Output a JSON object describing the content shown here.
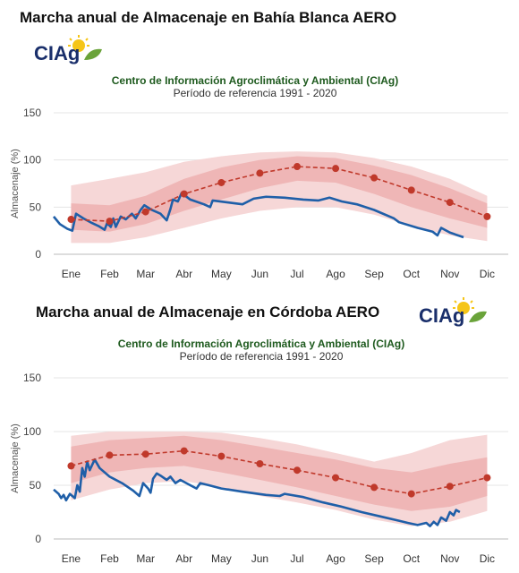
{
  "logo_text": "CIAg",
  "chart_data": [
    {
      "type": "line",
      "title": "Marcha anual de Almacenaje en Bahía Blanca AERO",
      "organization": "Centro de Información Agroclimática y Ambiental (CIAg)",
      "period": "Período de referencia 1991 - 2020",
      "ylabel": "Almacenaje (%)",
      "xlabel": "",
      "ylim": [
        0,
        150
      ],
      "yticks": [
        0,
        50,
        100,
        150
      ],
      "grid": true,
      "months": [
        "Ene",
        "Feb",
        "Mar",
        "Abr",
        "May",
        "Jun",
        "Jul",
        "Ago",
        "Sep",
        "Oct",
        "Nov",
        "Dic"
      ],
      "colors": {
        "current": "#1f5fa8",
        "median": "#c0392b",
        "band_outer": "#f6d7d7",
        "band_inner": "#efb6b6"
      },
      "median": [
        {
          "x": "2024-01-15",
          "y": 37
        },
        {
          "x": "2024-02-15",
          "y": 35
        },
        {
          "x": "2024-03-15",
          "y": 45
        },
        {
          "x": "2024-04-15",
          "y": 64
        },
        {
          "x": "2024-05-15",
          "y": 76
        },
        {
          "x": "2024-06-15",
          "y": 86
        },
        {
          "x": "2024-07-15",
          "y": 93
        },
        {
          "x": "2024-08-15",
          "y": 91
        },
        {
          "x": "2024-09-15",
          "y": 81
        },
        {
          "x": "2024-10-15",
          "y": 68
        },
        {
          "x": "2024-11-15",
          "y": 55
        },
        {
          "x": "2024-12-15",
          "y": 40
        }
      ],
      "band_outer": [
        {
          "x": "2024-01-15",
          "low": 12,
          "high": 73
        },
        {
          "x": "2024-02-15",
          "low": 12,
          "high": 80
        },
        {
          "x": "2024-03-15",
          "low": 18,
          "high": 87
        },
        {
          "x": "2024-04-15",
          "low": 28,
          "high": 98
        },
        {
          "x": "2024-05-15",
          "low": 38,
          "high": 104
        },
        {
          "x": "2024-06-15",
          "low": 46,
          "high": 108
        },
        {
          "x": "2024-07-15",
          "low": 50,
          "high": 109
        },
        {
          "x": "2024-08-15",
          "low": 50,
          "high": 108
        },
        {
          "x": "2024-09-15",
          "low": 42,
          "high": 102
        },
        {
          "x": "2024-10-15",
          "low": 30,
          "high": 93
        },
        {
          "x": "2024-11-15",
          "low": 20,
          "high": 80
        },
        {
          "x": "2024-12-15",
          "low": 14,
          "high": 62
        }
      ],
      "band_inner": [
        {
          "x": "2024-01-15",
          "low": 26,
          "high": 54
        },
        {
          "x": "2024-02-15",
          "low": 24,
          "high": 52
        },
        {
          "x": "2024-03-15",
          "low": 32,
          "high": 62
        },
        {
          "x": "2024-04-15",
          "low": 46,
          "high": 80
        },
        {
          "x": "2024-05-15",
          "low": 58,
          "high": 92
        },
        {
          "x": "2024-06-15",
          "low": 70,
          "high": 100
        },
        {
          "x": "2024-07-15",
          "low": 78,
          "high": 104
        },
        {
          "x": "2024-08-15",
          "low": 76,
          "high": 102
        },
        {
          "x": "2024-09-15",
          "low": 64,
          "high": 94
        },
        {
          "x": "2024-10-15",
          "low": 50,
          "high": 84
        },
        {
          "x": "2024-11-15",
          "low": 38,
          "high": 70
        },
        {
          "x": "2024-12-15",
          "low": 28,
          "high": 54
        }
      ],
      "current": [
        {
          "x": "2024-01-01",
          "y": 40
        },
        {
          "x": "2024-01-06",
          "y": 32
        },
        {
          "x": "2024-01-12",
          "y": 27
        },
        {
          "x": "2024-01-16",
          "y": 25
        },
        {
          "x": "2024-01-19",
          "y": 43
        },
        {
          "x": "2024-01-25",
          "y": 38
        },
        {
          "x": "2024-02-01",
          "y": 33
        },
        {
          "x": "2024-02-06",
          "y": 30
        },
        {
          "x": "2024-02-11",
          "y": 26
        },
        {
          "x": "2024-02-13",
          "y": 33
        },
        {
          "x": "2024-02-16",
          "y": 29
        },
        {
          "x": "2024-02-18",
          "y": 38
        },
        {
          "x": "2024-02-20",
          "y": 29
        },
        {
          "x": "2024-02-24",
          "y": 40
        },
        {
          "x": "2024-02-28",
          "y": 37
        },
        {
          "x": "2024-03-04",
          "y": 43
        },
        {
          "x": "2024-03-07",
          "y": 38
        },
        {
          "x": "2024-03-11",
          "y": 47
        },
        {
          "x": "2024-03-14",
          "y": 52
        },
        {
          "x": "2024-03-20",
          "y": 47
        },
        {
          "x": "2024-03-27",
          "y": 43
        },
        {
          "x": "2024-04-01",
          "y": 36
        },
        {
          "x": "2024-04-04",
          "y": 48
        },
        {
          "x": "2024-04-06",
          "y": 58
        },
        {
          "x": "2024-04-10",
          "y": 56
        },
        {
          "x": "2024-04-13",
          "y": 65
        },
        {
          "x": "2024-04-20",
          "y": 58
        },
        {
          "x": "2024-05-01",
          "y": 53
        },
        {
          "x": "2024-05-06",
          "y": 50
        },
        {
          "x": "2024-05-08",
          "y": 57
        },
        {
          "x": "2024-05-20",
          "y": 55
        },
        {
          "x": "2024-06-01",
          "y": 53
        },
        {
          "x": "2024-06-10",
          "y": 59
        },
        {
          "x": "2024-06-20",
          "y": 61
        },
        {
          "x": "2024-07-05",
          "y": 60
        },
        {
          "x": "2024-07-20",
          "y": 58
        },
        {
          "x": "2024-08-01",
          "y": 57
        },
        {
          "x": "2024-08-10",
          "y": 60
        },
        {
          "x": "2024-08-20",
          "y": 56
        },
        {
          "x": "2024-09-01",
          "y": 53
        },
        {
          "x": "2024-09-15",
          "y": 47
        },
        {
          "x": "2024-10-01",
          "y": 38
        },
        {
          "x": "2024-10-05",
          "y": 34
        },
        {
          "x": "2024-10-20",
          "y": 28
        },
        {
          "x": "2024-11-01",
          "y": 24
        },
        {
          "x": "2024-11-05",
          "y": 20
        },
        {
          "x": "2024-11-08",
          "y": 28
        },
        {
          "x": "2024-11-15",
          "y": 23
        },
        {
          "x": "2024-11-26",
          "y": 18
        }
      ]
    },
    {
      "type": "line",
      "title": "Marcha anual de Almacenaje en Córdoba AERO",
      "organization": "Centro de Información Agroclimática y Ambiental (CIAg)",
      "period": "Período de referencia 1991 - 2020",
      "ylabel": "Almacenaje (%)",
      "xlabel": "",
      "ylim": [
        0,
        150
      ],
      "yticks": [
        0,
        50,
        100,
        150
      ],
      "grid": true,
      "months": [
        "Ene",
        "Feb",
        "Mar",
        "Abr",
        "May",
        "Jun",
        "Jul",
        "Ago",
        "Sep",
        "Oct",
        "Nov",
        "Dic"
      ],
      "colors": {
        "current": "#1f5fa8",
        "median": "#c0392b",
        "band_outer": "#f6d7d7",
        "band_inner": "#efb6b6"
      },
      "median": [
        {
          "x": "2024-01-15",
          "y": 68
        },
        {
          "x": "2024-02-15",
          "y": 78
        },
        {
          "x": "2024-03-15",
          "y": 79
        },
        {
          "x": "2024-04-15",
          "y": 82
        },
        {
          "x": "2024-05-15",
          "y": 77
        },
        {
          "x": "2024-06-15",
          "y": 70
        },
        {
          "x": "2024-07-15",
          "y": 64
        },
        {
          "x": "2024-08-15",
          "y": 57
        },
        {
          "x": "2024-09-15",
          "y": 48
        },
        {
          "x": "2024-10-15",
          "y": 42
        },
        {
          "x": "2024-11-15",
          "y": 49
        },
        {
          "x": "2024-12-15",
          "y": 57
        }
      ],
      "band_outer": [
        {
          "x": "2024-01-15",
          "low": 36,
          "high": 96
        },
        {
          "x": "2024-02-15",
          "low": 46,
          "high": 100
        },
        {
          "x": "2024-03-15",
          "low": 52,
          "high": 100
        },
        {
          "x": "2024-04-15",
          "low": 54,
          "high": 100
        },
        {
          "x": "2024-05-15",
          "low": 48,
          "high": 99
        },
        {
          "x": "2024-06-15",
          "low": 40,
          "high": 94
        },
        {
          "x": "2024-07-15",
          "low": 34,
          "high": 88
        },
        {
          "x": "2024-08-15",
          "low": 27,
          "high": 80
        },
        {
          "x": "2024-09-15",
          "low": 18,
          "high": 72
        },
        {
          "x": "2024-10-15",
          "low": 12,
          "high": 80
        },
        {
          "x": "2024-11-15",
          "low": 16,
          "high": 92
        },
        {
          "x": "2024-12-15",
          "low": 26,
          "high": 97
        }
      ],
      "band_inner": [
        {
          "x": "2024-01-15",
          "low": 52,
          "high": 86
        },
        {
          "x": "2024-02-15",
          "low": 62,
          "high": 92
        },
        {
          "x": "2024-03-15",
          "low": 66,
          "high": 94
        },
        {
          "x": "2024-04-15",
          "low": 68,
          "high": 96
        },
        {
          "x": "2024-05-15",
          "low": 62,
          "high": 92
        },
        {
          "x": "2024-06-15",
          "low": 55,
          "high": 86
        },
        {
          "x": "2024-07-15",
          "low": 48,
          "high": 80
        },
        {
          "x": "2024-08-15",
          "low": 40,
          "high": 74
        },
        {
          "x": "2024-09-15",
          "low": 32,
          "high": 66
        },
        {
          "x": "2024-10-15",
          "low": 26,
          "high": 62
        },
        {
          "x": "2024-11-15",
          "low": 30,
          "high": 70
        },
        {
          "x": "2024-12-15",
          "low": 40,
          "high": 76
        }
      ],
      "current": [
        {
          "x": "2024-01-01",
          "y": 46
        },
        {
          "x": "2024-01-05",
          "y": 42
        },
        {
          "x": "2024-01-07",
          "y": 38
        },
        {
          "x": "2024-01-09",
          "y": 41
        },
        {
          "x": "2024-01-11",
          "y": 36
        },
        {
          "x": "2024-01-14",
          "y": 42
        },
        {
          "x": "2024-01-18",
          "y": 38
        },
        {
          "x": "2024-01-20",
          "y": 50
        },
        {
          "x": "2024-01-22",
          "y": 44
        },
        {
          "x": "2024-01-24",
          "y": 66
        },
        {
          "x": "2024-01-26",
          "y": 58
        },
        {
          "x": "2024-01-28",
          "y": 72
        },
        {
          "x": "2024-01-30",
          "y": 64
        },
        {
          "x": "2024-02-03",
          "y": 74
        },
        {
          "x": "2024-02-07",
          "y": 66
        },
        {
          "x": "2024-02-15",
          "y": 58
        },
        {
          "x": "2024-02-25",
          "y": 52
        },
        {
          "x": "2024-03-05",
          "y": 45
        },
        {
          "x": "2024-03-10",
          "y": 40
        },
        {
          "x": "2024-03-13",
          "y": 52
        },
        {
          "x": "2024-03-17",
          "y": 47
        },
        {
          "x": "2024-03-19",
          "y": 43
        },
        {
          "x": "2024-03-21",
          "y": 56
        },
        {
          "x": "2024-03-24",
          "y": 61
        },
        {
          "x": "2024-03-27",
          "y": 59
        },
        {
          "x": "2024-04-01",
          "y": 55
        },
        {
          "x": "2024-04-04",
          "y": 58
        },
        {
          "x": "2024-04-08",
          "y": 52
        },
        {
          "x": "2024-04-12",
          "y": 55
        },
        {
          "x": "2024-04-20",
          "y": 50
        },
        {
          "x": "2024-04-25",
          "y": 47
        },
        {
          "x": "2024-04-28",
          "y": 52
        },
        {
          "x": "2024-05-05",
          "y": 50
        },
        {
          "x": "2024-05-15",
          "y": 47
        },
        {
          "x": "2024-06-01",
          "y": 44
        },
        {
          "x": "2024-06-20",
          "y": 41
        },
        {
          "x": "2024-07-01",
          "y": 40
        },
        {
          "x": "2024-07-05",
          "y": 42
        },
        {
          "x": "2024-07-20",
          "y": 39
        },
        {
          "x": "2024-08-05",
          "y": 34
        },
        {
          "x": "2024-08-20",
          "y": 30
        },
        {
          "x": "2024-09-05",
          "y": 25
        },
        {
          "x": "2024-09-20",
          "y": 21
        },
        {
          "x": "2024-10-05",
          "y": 17
        },
        {
          "x": "2024-10-12",
          "y": 15
        },
        {
          "x": "2024-10-20",
          "y": 13
        },
        {
          "x": "2024-10-27",
          "y": 15
        },
        {
          "x": "2024-10-30",
          "y": 12
        },
        {
          "x": "2024-11-02",
          "y": 16
        },
        {
          "x": "2024-11-05",
          "y": 13
        },
        {
          "x": "2024-11-08",
          "y": 20
        },
        {
          "x": "2024-11-12",
          "y": 17
        },
        {
          "x": "2024-11-15",
          "y": 25
        },
        {
          "x": "2024-11-18",
          "y": 22
        },
        {
          "x": "2024-11-20",
          "y": 27
        },
        {
          "x": "2024-11-23",
          "y": 25
        }
      ]
    }
  ]
}
